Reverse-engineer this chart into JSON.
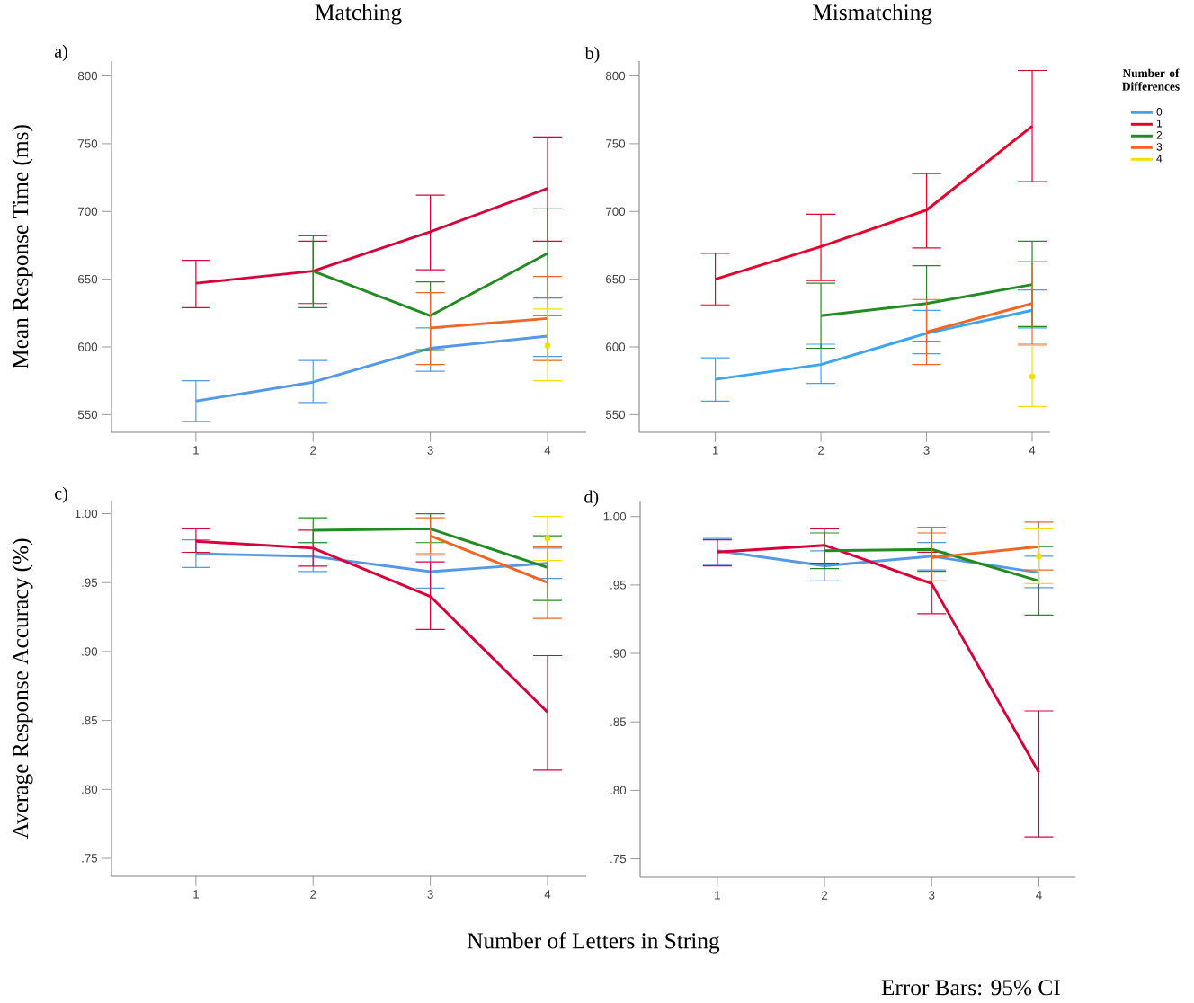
{
  "chart_data": [
    {
      "type": "line",
      "title": "Matching",
      "ylabel": "Mean Response Time (ms)",
      "annotations": [
        "a)"
      ],
      "x": [
        1,
        2,
        3,
        4
      ],
      "xlim": [
        0.28,
        4.33
      ],
      "xticks": [
        1,
        2,
        3,
        4
      ],
      "ylim": [
        537,
        811
      ],
      "yticks": [
        550,
        600,
        650,
        700,
        750,
        800
      ],
      "series": [
        {
          "color": "#5599e6",
          "values": [
            560,
            574,
            599,
            608
          ],
          "errors": [
            [
              545,
              575
            ],
            [
              559,
              590
            ],
            [
              582,
              614
            ],
            [
              593,
              623
            ]
          ]
        },
        {
          "color": "#d9003a",
          "values": [
            647,
            656,
            685,
            717
          ],
          "errors": [
            [
              629,
              664
            ],
            [
              632,
              678
            ],
            [
              657,
              712
            ],
            [
              678,
              755
            ]
          ]
        },
        {
          "color": "#228b22",
          "values": [
            null,
            656,
            623,
            669
          ],
          "errors": [
            null,
            [
              629,
              682
            ],
            [
              598,
              648
            ],
            [
              636,
              702
            ]
          ]
        },
        {
          "color": "#f26522",
          "values": [
            null,
            null,
            614,
            621
          ],
          "errors": [
            null,
            null,
            [
              587,
              640
            ],
            [
              590,
              652
            ]
          ]
        },
        {
          "color": "#f0e000",
          "marker": "circle",
          "values": [
            null,
            null,
            null,
            601
          ],
          "errors": [
            null,
            null,
            null,
            [
              575,
              628
            ]
          ]
        }
      ]
    },
    {
      "type": "line",
      "title": "Mismatching",
      "annotations": [
        "b)"
      ],
      "legend": "right",
      "legend_title": "Number of Differences",
      "x": [
        1,
        2,
        3,
        4
      ],
      "xlim": [
        0.28,
        4.17
      ],
      "xticks": [
        1,
        2,
        3,
        4
      ],
      "ylim": [
        537,
        811
      ],
      "yticks": [
        550,
        600,
        650,
        700,
        750,
        800
      ],
      "series": [
        {
          "name": "0",
          "color": "#3aa5f2",
          "values": [
            576,
            587,
            610,
            627
          ],
          "errors": [
            [
              560,
              592
            ],
            [
              573,
              602
            ],
            [
              595,
              627
            ],
            [
              614,
              642
            ]
          ]
        },
        {
          "name": "1",
          "color": "#e8002a",
          "values": [
            650,
            674,
            701,
            763
          ],
          "errors": [
            [
              631,
              669
            ],
            [
              649,
              698
            ],
            [
              673,
              728
            ],
            [
              722,
              804
            ]
          ]
        },
        {
          "name": "2",
          "color": "#228b22",
          "values": [
            null,
            623,
            632,
            646
          ],
          "errors": [
            null,
            [
              599,
              647
            ],
            [
              604,
              660
            ],
            [
              615,
              678
            ]
          ]
        },
        {
          "name": "3",
          "color": "#f26522",
          "values": [
            null,
            null,
            611,
            632
          ],
          "errors": [
            null,
            null,
            [
              587,
              635
            ],
            [
              602,
              663
            ]
          ]
        },
        {
          "name": "4",
          "color": "#f0e000",
          "marker": "circle",
          "values": [
            null,
            null,
            null,
            578
          ],
          "errors": [
            null,
            null,
            null,
            [
              556,
              601
            ]
          ]
        }
      ]
    },
    {
      "type": "line",
      "ylabel": "Average Response Accuracy (%)",
      "xlabel": "Number of Letters in String",
      "annotations": [
        "c)"
      ],
      "x": [
        1,
        2,
        3,
        4
      ],
      "xlim": [
        0.28,
        4.33
      ],
      "xticks": [
        1,
        2,
        3,
        4
      ],
      "ylim": [
        0.737,
        1.0095
      ],
      "yticks": [
        {
          "value": 0.75,
          "label": ".75"
        },
        {
          "value": 0.8,
          "label": ".80"
        },
        {
          "value": 0.85,
          "label": ".85"
        },
        {
          "value": 0.9,
          "label": ".90"
        },
        {
          "value": 0.95,
          "label": ".95"
        },
        {
          "value": 1.0,
          "label": "1.00"
        }
      ],
      "series": [
        {
          "color": "#5599e6",
          "values": [
            0.971,
            0.969,
            0.958,
            0.964
          ],
          "errors": [
            [
              0.961,
              0.981
            ],
            [
              0.958,
              0.979
            ],
            [
              0.946,
              0.97
            ],
            [
              0.953,
              0.975
            ]
          ]
        },
        {
          "color": "#d9003a",
          "values": [
            0.98,
            0.975,
            0.94,
            0.856
          ],
          "errors": [
            [
              0.972,
              0.989
            ],
            [
              0.962,
              0.988
            ],
            [
              0.916,
              0.965
            ],
            [
              0.814,
              0.897
            ]
          ]
        },
        {
          "color": "#228b22",
          "values": [
            null,
            0.988,
            0.989,
            0.961
          ],
          "errors": [
            null,
            [
              0.979,
              0.997
            ],
            [
              0.979,
              1.0
            ],
            [
              0.937,
              0.984
            ]
          ]
        },
        {
          "color": "#f26522",
          "values": [
            null,
            null,
            0.984,
            0.95
          ],
          "errors": [
            null,
            null,
            [
              0.971,
              0.997
            ],
            [
              0.924,
              0.976
            ]
          ]
        },
        {
          "color": "#f0e000",
          "marker": "circle",
          "values": [
            null,
            null,
            null,
            0.982
          ],
          "errors": [
            null,
            null,
            null,
            [
              0.966,
              0.998
            ]
          ]
        }
      ]
    },
    {
      "type": "line",
      "annotations": [
        "d)",
        "Error Bars: 95% CI"
      ],
      "x": [
        1,
        2,
        3,
        4
      ],
      "xlim": [
        0.28,
        4.34
      ],
      "xticks": [
        1,
        2,
        3,
        4
      ],
      "ylim": [
        0.7366,
        1.011
      ],
      "yticks": [
        {
          "value": 0.75,
          "label": ".75"
        },
        {
          "value": 0.8,
          "label": ".80"
        },
        {
          "value": 0.85,
          "label": ".85"
        },
        {
          "value": 0.9,
          "label": ".90"
        },
        {
          "value": 0.95,
          "label": ".95"
        },
        {
          "value": 1.0,
          "label": "1.00"
        }
      ],
      "series": [
        {
          "color": "#5599e6",
          "values": [
            0.975,
            0.964,
            0.971,
            0.959
          ],
          "errors": [
            [
              0.965,
              0.984
            ],
            [
              0.953,
              0.975
            ],
            [
              0.961,
              0.981
            ],
            [
              0.948,
              0.971
            ]
          ]
        },
        {
          "color": "#d9003a",
          "values": [
            0.974,
            0.979,
            0.951,
            0.813
          ],
          "errors": [
            [
              0.964,
              0.983
            ],
            [
              0.966,
              0.991
            ],
            [
              0.929,
              0.974
            ],
            [
              0.766,
              0.858
            ]
          ]
        },
        {
          "color": "#228b22",
          "values": [
            null,
            0.975,
            0.976,
            0.953
          ],
          "errors": [
            null,
            [
              0.962,
              0.988
            ],
            [
              0.96,
              0.992
            ],
            [
              0.928,
              0.978
            ]
          ]
        },
        {
          "color": "#f26522",
          "values": [
            null,
            null,
            0.97,
            0.978
          ],
          "errors": [
            null,
            null,
            [
              0.953,
              0.988
            ],
            [
              0.961,
              0.996
            ]
          ]
        },
        {
          "color": "#f0e000",
          "marker": "circle",
          "values": [
            null,
            null,
            null,
            0.971
          ],
          "errors": [
            null,
            null,
            null,
            [
              0.951,
              0.991
            ]
          ]
        }
      ]
    }
  ]
}
